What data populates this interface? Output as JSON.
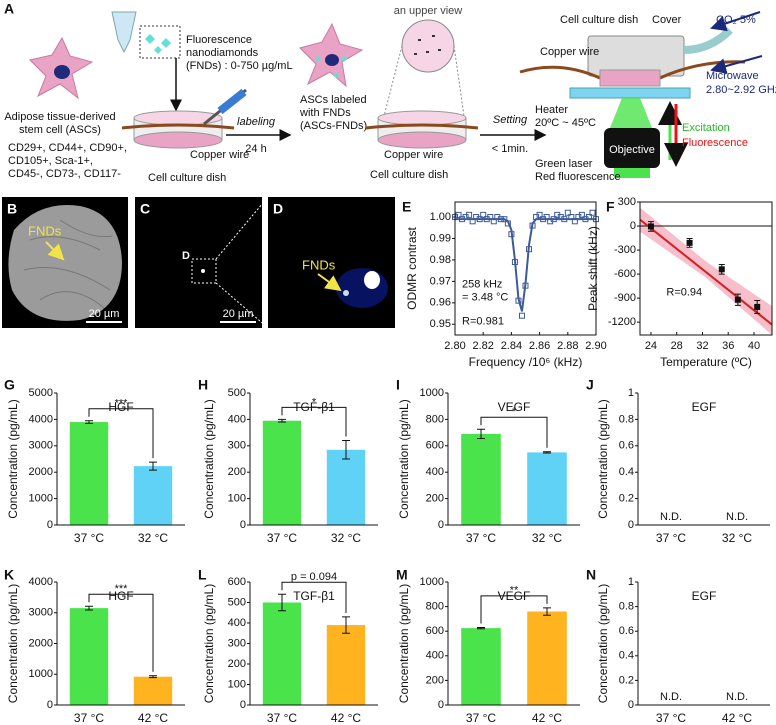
{
  "panel_a": {
    "label": "A",
    "fnd": [
      "Fluorescence",
      "nanodiamonds",
      "(FNDs) : 0-750 µg/mL"
    ],
    "asc": [
      "Adipose tissue-derived",
      "stem cell (ASCs)"
    ],
    "markers": [
      "CD29+, CD44+, CD90+,",
      "CD105+, Sca-1+,",
      "CD45-, CD73-, CD117-"
    ],
    "copper_wire": [
      "Copper wire",
      "Copper wire",
      "Copper wire"
    ],
    "dish": [
      "Cell culture dish",
      "Cell culture dish",
      "Cell culture dish"
    ],
    "labeling": [
      "labeling",
      "24 h"
    ],
    "labeled": [
      "ASCs labeled",
      "with FNDs",
      "(ASCs-FNDs)"
    ],
    "upper_view": "an upper view",
    "setting": [
      "Setting",
      "< 1min."
    ],
    "setup": {
      "cover": "Cover",
      "co2": "CO₂ 5%",
      "microwave": [
        "Microwave",
        "2.80~2.92 GHz"
      ],
      "heater": [
        "Heater",
        "20ºC ~ 45ºC"
      ],
      "objective": "Objective",
      "excitation": "Excitation",
      "fluorescence": "Fluorescence",
      "laser": [
        "Green laser",
        "Red fluorescence"
      ]
    }
  },
  "images": [
    {
      "label": "B",
      "annotation": "FNDs",
      "scale_bar": "20 µm"
    },
    {
      "label": "C",
      "inset_label": "D",
      "scale_bar": "20 µm"
    },
    {
      "label": "D",
      "annotation": "FNDs"
    }
  ],
  "chart_data": [
    {
      "type": "scatter",
      "panel_label": "E",
      "frame": true,
      "x_label": "Frequency /10⁶ (kHz)",
      "y_label": "ODMR contrast",
      "xlim": [
        2.8,
        2.9
      ],
      "xticks": [
        {
          "value": 2.8,
          "label": "2.80"
        },
        2.82,
        2.84,
        2.86,
        2.88,
        {
          "value": 2.9,
          "label": "2.90"
        }
      ],
      "ylim": [
        0.945,
        1.007
      ],
      "yticks": [
        0.95,
        0.96,
        0.97,
        0.98,
        0.99,
        {
          "value": 1,
          "label": "1.00"
        }
      ],
      "annotations": [
        "258 kHz",
        "= 3.48 °C",
        "R=0.981"
      ],
      "x": [
        2.8,
        2.8025,
        2.805,
        2.8075,
        2.81,
        2.8125,
        2.815,
        2.8175,
        2.82,
        2.8225,
        2.825,
        2.8275,
        2.83,
        2.8325,
        2.835,
        2.8375,
        2.84,
        2.8425,
        2.845,
        2.8475,
        2.85,
        2.8525,
        2.855,
        2.8575,
        2.86,
        2.8625,
        2.865,
        2.8675,
        2.87,
        2.8725,
        2.875,
        2.8775,
        2.88,
        2.8825,
        2.885,
        2.8875,
        2.89,
        2.8925,
        2.895,
        2.8975,
        2.9
      ],
      "series": [
        {
          "color": "#3d5a99",
          "style": "open-square",
          "values": [
            1.0,
            1.001,
            0.999,
            1.0,
            1.001,
            0.998,
            1.0,
            0.999,
            1.001,
            0.999,
            1.0,
            0.998,
            1.0,
            0.999,
            0.999,
            0.997,
            0.992,
            0.979,
            0.961,
            0.954,
            0.968,
            0.985,
            0.996,
            1.0,
            1.001,
            0.999,
            1.0,
            0.998,
            0.999,
            1.001,
            1.0,
            0.999,
            1.002,
            1.0,
            0.998,
            1.0,
            1.001,
            0.999,
            1.0,
            1.002,
            0.999
          ]
        },
        {
          "color": "#3d5a99",
          "style": "line",
          "values": [
            0.999,
            0.999,
            0.999,
            0.999,
            0.999,
            0.999,
            0.999,
            0.999,
            0.999,
            0.999,
            0.999,
            0.999,
            0.999,
            0.999,
            0.999,
            0.998,
            0.994,
            0.98,
            0.962,
            0.956,
            0.969,
            0.987,
            0.997,
            0.999,
            0.999,
            0.999,
            0.999,
            0.999,
            0.999,
            0.999,
            0.999,
            0.999,
            0.999,
            0.999,
            0.999,
            0.999,
            0.999,
            0.999,
            0.999,
            0.999,
            0.999
          ]
        }
      ]
    },
    {
      "type": "scatter",
      "panel_label": "F",
      "frame": true,
      "x_label": "Temperature (ºC)",
      "y_label": "Peak shift (kHz)",
      "xlim": [
        22.3,
        42.8
      ],
      "xticks": [
        24,
        28,
        32,
        36,
        40
      ],
      "ylim": [
        -1360,
        300
      ],
      "yticks": [
        300,
        0,
        -300,
        -600,
        -900,
        -1200
      ],
      "hline": 0,
      "annotations": [
        "R=0.94"
      ],
      "x": [
        24,
        30,
        35,
        37.5,
        40.5
      ],
      "series": [
        {
          "color": "#111111",
          "style": "filled-square",
          "values": [
            -5,
            -210,
            -540,
            -920,
            -1010
          ],
          "errors": [
            60,
            55,
            60,
            70,
            80
          ]
        }
      ],
      "fit": {
        "color": "#d42020",
        "x": [
          22.3,
          42.8
        ],
        "values": [
          80,
          -1230
        ]
      },
      "band": {
        "color": "#f4a3b5",
        "x": [
          22.3,
          32.5,
          42.8
        ],
        "upper": [
          230,
          -440,
          -1000
        ],
        "lower": [
          -70,
          -640,
          -1360
        ]
      }
    },
    {
      "type": "bar",
      "panel_label": "G",
      "title": "HGF",
      "y_label": "Concentration (pg/mL)",
      "categories": [
        "37 °C",
        "32 °C"
      ],
      "values": [
        3900,
        2230
      ],
      "errors": [
        50,
        150
      ],
      "colors": [
        "#4be34b",
        "#5fd2f6"
      ],
      "significance": "***",
      "ylim": [
        0,
        5000
      ],
      "yticks": [
        0,
        1000,
        2000,
        3000,
        4000,
        5000
      ]
    },
    {
      "type": "bar",
      "panel_label": "H",
      "title": "TGF-β1",
      "y_label": "Concentration (pg/mL)",
      "categories": [
        "37 °C",
        "32 °C"
      ],
      "values": [
        395,
        285
      ],
      "errors": [
        5,
        35
      ],
      "colors": [
        "#4be34b",
        "#5fd2f6"
      ],
      "significance": "*",
      "ylim": [
        0,
        500
      ],
      "yticks": [
        0,
        100,
        200,
        300,
        400,
        500
      ]
    },
    {
      "type": "bar",
      "panel_label": "I",
      "title": "VEGF",
      "y_label": "Concentration (pg/mL)",
      "categories": [
        "37 °C",
        "32 °C"
      ],
      "values": [
        690,
        550
      ],
      "errors": [
        35,
        5
      ],
      "colors": [
        "#4be34b",
        "#5fd2f6"
      ],
      "significance": "*",
      "ylim": [
        0,
        1000
      ],
      "yticks": [
        0,
        200,
        400,
        600,
        800,
        1000
      ]
    },
    {
      "type": "bar",
      "panel_label": "J",
      "title": "EGF",
      "y_label": "Concentration (pg/mL)",
      "categories": [
        "37 °C",
        "32 °C"
      ],
      "values": [
        null,
        null
      ],
      "value_labels": [
        "N.D.",
        "N.D."
      ],
      "ylim": [
        0,
        1
      ],
      "yticks": [
        0,
        0.2,
        0.4,
        0.6,
        0.8,
        1
      ]
    },
    {
      "type": "bar",
      "panel_label": "K",
      "title": "HGF",
      "y_label": "Concentration (pg/mL)",
      "categories": [
        "37 °C",
        "42 °C"
      ],
      "values": [
        3150,
        920
      ],
      "errors": [
        60,
        30
      ],
      "colors": [
        "#4be34b",
        "#ffb41f"
      ],
      "significance": "***",
      "ylim": [
        0,
        4000
      ],
      "yticks": [
        0,
        1000,
        2000,
        3000,
        4000
      ]
    },
    {
      "type": "bar",
      "panel_label": "L",
      "title": "TGF-β1",
      "y_label": "Concentration (pg/mL)",
      "categories": [
        "37 °C",
        "42 °C"
      ],
      "values": [
        500,
        390
      ],
      "errors": [
        40,
        40
      ],
      "colors": [
        "#4be34b",
        "#ffb41f"
      ],
      "significance": "p = 0.094",
      "ylim": [
        0,
        600
      ],
      "yticks": [
        0,
        100,
        200,
        300,
        400,
        500,
        600
      ]
    },
    {
      "type": "bar",
      "panel_label": "M",
      "title": "VEGF",
      "y_label": "Concentration (pg/mL)",
      "categories": [
        "37 °C",
        "42 °C"
      ],
      "values": [
        625,
        760
      ],
      "errors": [
        5,
        30
      ],
      "colors": [
        "#4be34b",
        "#ffb41f"
      ],
      "significance": "**",
      "ylim": [
        0,
        1000
      ],
      "yticks": [
        0,
        200,
        400,
        600,
        800,
        1000
      ]
    },
    {
      "type": "bar",
      "panel_label": "N",
      "title": "EGF",
      "y_label": "Concentration (pg/mL)",
      "categories": [
        "37 °C",
        "42 °C"
      ],
      "values": [
        null,
        null
      ],
      "value_labels": [
        "N.D.",
        "N.D."
      ],
      "ylim": [
        0,
        1
      ],
      "yticks": [
        0,
        0.2,
        0.4,
        0.6,
        0.8,
        1
      ]
    }
  ]
}
